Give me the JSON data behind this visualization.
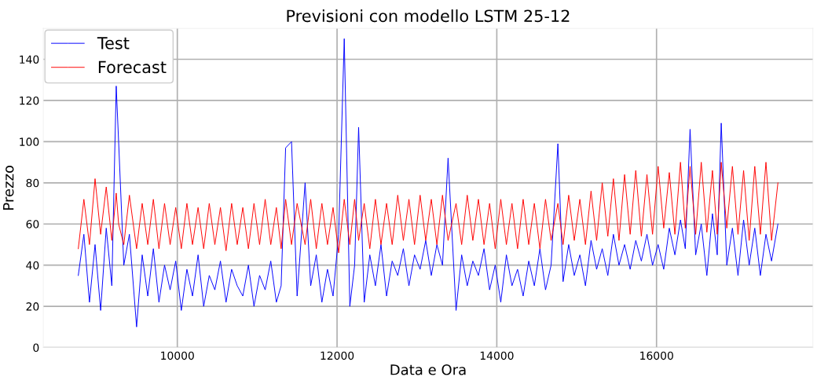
{
  "chart_data": {
    "type": "line",
    "title": "Previsioni con modello LSTM 25-12",
    "xlabel": "Data e Ora",
    "ylabel": "Prezzo",
    "x": [
      8760,
      8830,
      8900,
      8970,
      9040,
      9110,
      9180,
      9235,
      9265,
      9330,
      9400,
      9490,
      9560,
      9630,
      9700,
      9770,
      9840,
      9910,
      9980,
      10050,
      10120,
      10190,
      10260,
      10330,
      10400,
      10470,
      10540,
      10610,
      10680,
      10750,
      10820,
      10890,
      10960,
      11030,
      11100,
      11170,
      11240,
      11300,
      11356,
      11430,
      11500,
      11600,
      11670,
      11740,
      11810,
      11880,
      11950,
      12020,
      12090,
      12160,
      12220,
      12270,
      12340,
      12410,
      12480,
      12550,
      12620,
      12690,
      12760,
      12830,
      12900,
      12970,
      13040,
      13110,
      13180,
      13250,
      13320,
      13390,
      13490,
      13560,
      13630,
      13700,
      13770,
      13840,
      13910,
      13980,
      14050,
      14120,
      14190,
      14260,
      14330,
      14400,
      14470,
      14540,
      14610,
      14680,
      14765,
      14830,
      14900,
      14970,
      15040,
      15110,
      15180,
      15250,
      15320,
      15390,
      15460,
      15530,
      15600,
      15670,
      15740,
      15810,
      15880,
      15950,
      16020,
      16090,
      16160,
      16230,
      16300,
      16360,
      16420,
      16490,
      16560,
      16630,
      16700,
      16760,
      16810,
      16880,
      16950,
      17020,
      17090,
      17160,
      17230,
      17300,
      17370,
      17440,
      17520
    ],
    "series": [
      {
        "name": "Test",
        "color": "#0000ff",
        "values": [
          35,
          55,
          22,
          50,
          18,
          58,
          30,
          127,
          100,
          40,
          55,
          10,
          45,
          25,
          48,
          22,
          40,
          28,
          42,
          18,
          38,
          25,
          45,
          20,
          35,
          28,
          42,
          22,
          38,
          30,
          25,
          40,
          20,
          35,
          28,
          42,
          22,
          30,
          97,
          100,
          25,
          80,
          30,
          45,
          22,
          38,
          25,
          55,
          150,
          20,
          40,
          107,
          22,
          45,
          30,
          50,
          25,
          42,
          35,
          48,
          30,
          45,
          38,
          52,
          35,
          50,
          40,
          92,
          18,
          45,
          30,
          42,
          35,
          48,
          28,
          40,
          22,
          45,
          30,
          38,
          25,
          42,
          30,
          48,
          28,
          40,
          99,
          32,
          50,
          35,
          45,
          30,
          52,
          38,
          48,
          35,
          55,
          40,
          50,
          38,
          52,
          42,
          55,
          40,
          50,
          38,
          58,
          45,
          62,
          48,
          106,
          45,
          60,
          35,
          65,
          45,
          109,
          40,
          58,
          35,
          62,
          40,
          58,
          35,
          55,
          42,
          60
        ]
      },
      {
        "name": "Forecast",
        "color": "#ff0000",
        "values": [
          48,
          72,
          50,
          82,
          55,
          78,
          52,
          75,
          60,
          50,
          74,
          48,
          70,
          50,
          72,
          48,
          70,
          50,
          68,
          48,
          70,
          50,
          68,
          48,
          70,
          50,
          68,
          47,
          70,
          50,
          68,
          48,
          70,
          50,
          72,
          50,
          68,
          48,
          72,
          50,
          70,
          50,
          72,
          48,
          70,
          50,
          68,
          46,
          72,
          50,
          72,
          52,
          70,
          48,
          72,
          50,
          70,
          50,
          74,
          52,
          72,
          50,
          74,
          52,
          72,
          50,
          74,
          52,
          70,
          50,
          74,
          52,
          72,
          50,
          70,
          48,
          72,
          50,
          70,
          48,
          72,
          50,
          70,
          48,
          72,
          52,
          70,
          50,
          74,
          52,
          72,
          50,
          76,
          52,
          80,
          54,
          82,
          52,
          84,
          55,
          86,
          54,
          84,
          55,
          88,
          58,
          85,
          55,
          90,
          58,
          88,
          55,
          90,
          56,
          86,
          55,
          90,
          58,
          88,
          55,
          86,
          52,
          88,
          55,
          90,
          52,
          80
        ]
      }
    ],
    "xlim": [
      8322,
      17958
    ],
    "xticks": [
      10000,
      12000,
      14000,
      16000
    ],
    "ylim": [
      0,
      155
    ],
    "yticks": [
      0,
      20,
      40,
      60,
      80,
      100,
      120,
      140
    ],
    "grid": true,
    "legend": "top left",
    "line_style": "solid",
    "marker": "none"
  }
}
